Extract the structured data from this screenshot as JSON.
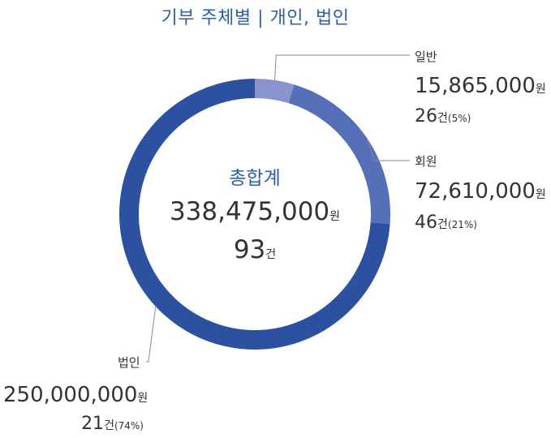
{
  "chart_data": {
    "type": "pie",
    "title": "기부 주체별 | 개인, 법인",
    "center": {
      "label": "총합계",
      "amount": "338,475,000",
      "amount_unit": "원",
      "count": "93",
      "count_unit": "건"
    },
    "categories": [
      "일반",
      "회원",
      "법인"
    ],
    "values": [
      15865000,
      72610000,
      250000000
    ],
    "counts": [
      26,
      46,
      21
    ],
    "shares": [
      5,
      21,
      74
    ],
    "slices": [
      {
        "label": "일반",
        "amount": "15,865,000",
        "count": "26",
        "percent": "(5%)",
        "color": "#8a94cc"
      },
      {
        "label": "회원",
        "amount": "72,610,000",
        "count": "46",
        "percent": "(21%)",
        "color": "#5570b8"
      },
      {
        "label": "법인",
        "amount": "250,000,000",
        "count": "21",
        "percent": "(74%)",
        "color": "#2c51a0"
      }
    ],
    "units": {
      "amount": "원",
      "count": "건"
    }
  }
}
